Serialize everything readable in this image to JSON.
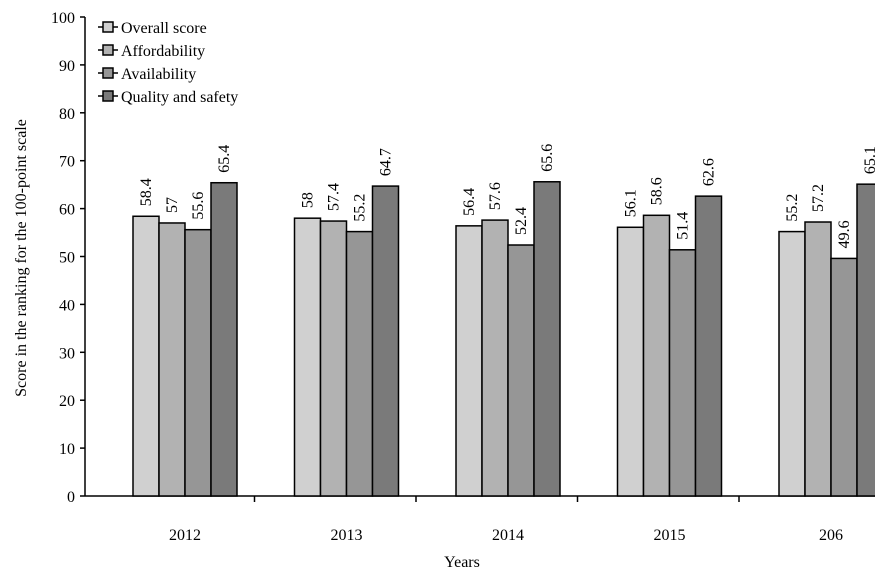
{
  "chart_data": {
    "type": "bar",
    "title": "",
    "xlabel": "Years",
    "ylabel": "Score in the ranking for the 100-point scale",
    "ylim": [
      0,
      100
    ],
    "yticks": [
      0,
      10,
      20,
      30,
      40,
      50,
      60,
      70,
      80,
      90,
      100
    ],
    "categories": [
      "2012",
      "2013",
      "2014",
      "2015",
      "206"
    ],
    "series": [
      {
        "name": "Overall score",
        "color": "#d0d0d0",
        "values": [
          58.4,
          58,
          56.4,
          56.1,
          55.2
        ]
      },
      {
        "name": "Affordability",
        "color": "#b2b2b2",
        "values": [
          57,
          57.4,
          57.6,
          58.6,
          57.2
        ]
      },
      {
        "name": "Availability",
        "color": "#969696",
        "values": [
          55.6,
          55.2,
          52.4,
          51.4,
          49.6
        ]
      },
      {
        "name": "Quality and safety",
        "color": "#7a7a7a",
        "values": [
          65.4,
          64.7,
          65.6,
          62.6,
          65.1
        ]
      }
    ],
    "data_labels": [
      [
        "58.4",
        "57",
        "55.6",
        "65.4"
      ],
      [
        "58",
        "57.4",
        "55.2",
        "64.7"
      ],
      [
        "56.4",
        "57.6",
        "52.4",
        "65.6"
      ],
      [
        "56.1",
        "58.6",
        "51.4",
        "62.6"
      ],
      [
        "55.2",
        "57.2",
        "49.6",
        "65.1"
      ]
    ],
    "grid": false,
    "legend_position": "top-left"
  }
}
